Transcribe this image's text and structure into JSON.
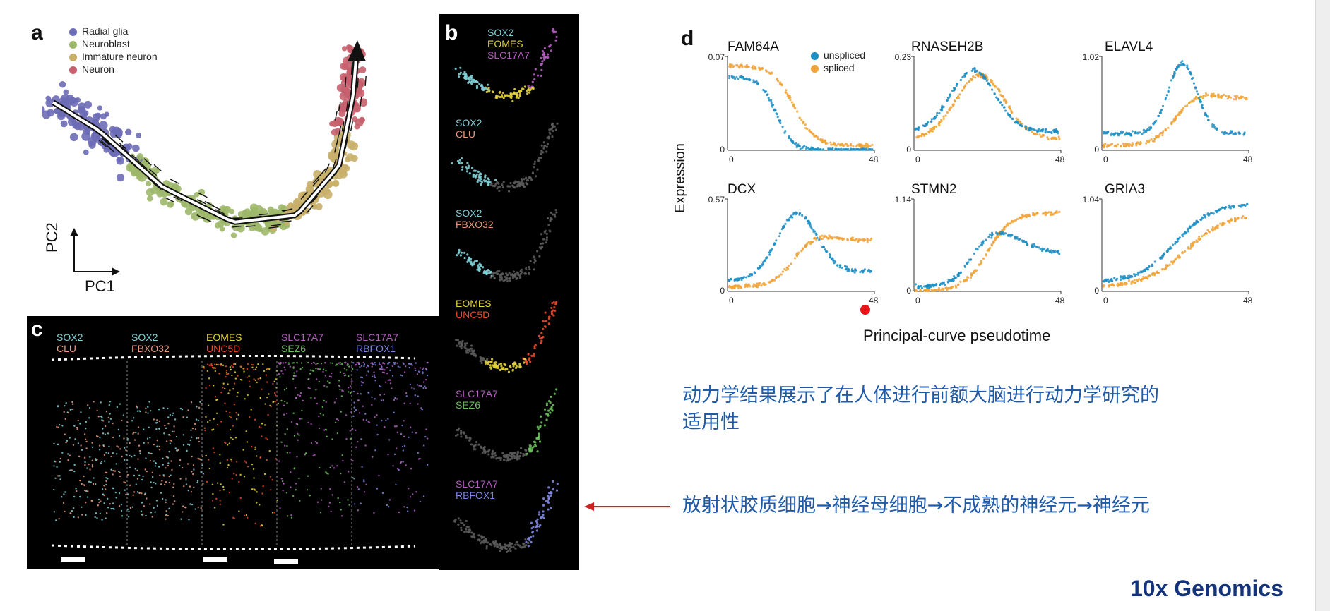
{
  "panel_a": {
    "letter": "a",
    "legend": [
      {
        "label": "Radial glia",
        "color": "#6b6cb6"
      },
      {
        "label": "Neuroblast",
        "color": "#9db86a"
      },
      {
        "label": "Immature neuron",
        "color": "#c9b06a"
      },
      {
        "label": "Neuron",
        "color": "#c7606e"
      }
    ],
    "axis_y": "PC2",
    "axis_x": "PC1"
  },
  "panel_b": {
    "letter": "b",
    "rows": [
      {
        "genes": [
          {
            "name": "SOX2",
            "color": "#7fd0d6"
          },
          {
            "name": "EOMES",
            "color": "#e3d23a"
          },
          {
            "name": "SLC17A7",
            "color": "#b45cc0"
          }
        ]
      },
      {
        "genes": [
          {
            "name": "SOX2",
            "color": "#7fd0d6"
          },
          {
            "name": "CLU",
            "color": "#e89a7a"
          }
        ]
      },
      {
        "genes": [
          {
            "name": "SOX2",
            "color": "#7fd0d6"
          },
          {
            "name": "FBXO32",
            "color": "#e89a7a"
          }
        ]
      },
      {
        "genes": [
          {
            "name": "EOMES",
            "color": "#e3d23a"
          },
          {
            "name": "UNC5D",
            "color": "#e84a2a"
          }
        ]
      },
      {
        "genes": [
          {
            "name": "SLC17A7",
            "color": "#b45cc0"
          },
          {
            "name": "SEZ6",
            "color": "#6cc05c"
          }
        ]
      },
      {
        "genes": [
          {
            "name": "SLC17A7",
            "color": "#b45cc0"
          },
          {
            "name": "RBFOX1",
            "color": "#7e86e0"
          }
        ]
      }
    ]
  },
  "panel_c": {
    "letter": "c",
    "columns": [
      {
        "genes": [
          {
            "name": "SOX2",
            "color": "#7fd0d6"
          },
          {
            "name": "CLU",
            "color": "#e89a7a"
          }
        ]
      },
      {
        "genes": [
          {
            "name": "SOX2",
            "color": "#7fd0d6"
          },
          {
            "name": "FBXO32",
            "color": "#e89a7a"
          }
        ]
      },
      {
        "genes": [
          {
            "name": "EOMES",
            "color": "#e3d23a"
          },
          {
            "name": "UNC5D",
            "color": "#e84a2a"
          }
        ]
      },
      {
        "genes": [
          {
            "name": "SLC17A7",
            "color": "#b45cc0"
          },
          {
            "name": "SEZ6",
            "color": "#6cc05c"
          }
        ]
      },
      {
        "genes": [
          {
            "name": "SLC17A7",
            "color": "#b45cc0"
          },
          {
            "name": "RBFOX1",
            "color": "#7e86e0"
          }
        ]
      }
    ]
  },
  "panel_d": {
    "letter": "d",
    "legend": [
      {
        "label": "unspliced",
        "color": "#1f8fc4"
      },
      {
        "label": "spliced",
        "color": "#f0a53a"
      }
    ],
    "ylabel": "Expression",
    "xlabel": "Principal-curve pseudotime"
  },
  "chart_data": {
    "type": "scatter",
    "series_names": [
      "unspliced",
      "spliced"
    ],
    "xlabel": "Principal-curve pseudotime",
    "ylabel": "Expression",
    "charts": [
      {
        "gene": "FAM64A",
        "ymax": "0.07",
        "xlim": [
          0,
          48
        ],
        "ytick_min": "0",
        "xtick_min": "0",
        "xtick_max": "48"
      },
      {
        "gene": "RNASEH2B",
        "ymax": "0.23",
        "xlim": [
          0,
          48
        ],
        "ytick_min": "0",
        "xtick_min": "0",
        "xtick_max": "48"
      },
      {
        "gene": "ELAVL4",
        "ymax": "1.02",
        "xlim": [
          0,
          48
        ],
        "ytick_min": "0",
        "xtick_min": "0",
        "xtick_max": "48"
      },
      {
        "gene": "DCX",
        "ymax": "0.57",
        "xlim": [
          0,
          48
        ],
        "ytick_min": "0",
        "xtick_min": "0",
        "xtick_max": "48"
      },
      {
        "gene": "STMN2",
        "ymax": "1.14",
        "xlim": [
          0,
          48
        ],
        "ytick_min": "0",
        "xtick_min": "0",
        "xtick_max": "48"
      },
      {
        "gene": "GRIA3",
        "ymax": "1.04",
        "xlim": [
          0,
          48
        ],
        "ytick_min": "0",
        "xtick_min": "0",
        "xtick_max": "48"
      }
    ]
  },
  "text": {
    "line1": "动力学结果展示了在人体进行前额大脑进行动力学研究的",
    "line2": "适用性",
    "line3": "放射状胶质细胞→神经母细胞→不成熟的神经元→神经元"
  },
  "brand": "10x Genomics",
  "colors": {
    "unspliced": "#1f8fc4",
    "spliced": "#f0a53a",
    "annotation_text": "#1f5aa8",
    "arrow": "#cc2222",
    "brand": "#13337a"
  }
}
